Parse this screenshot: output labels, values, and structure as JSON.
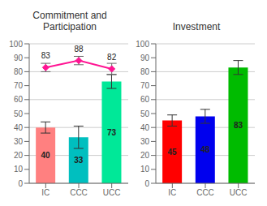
{
  "chart_data": [
    {
      "type": "bar",
      "title": "Commitment and\nParticipation",
      "categories": [
        "IC",
        "CCC",
        "UCC"
      ],
      "series": [
        {
          "type": "bar",
          "colors": [
            "#FF8080",
            "#00BFBF",
            "#00E898"
          ],
          "values": [
            40,
            33,
            73
          ],
          "errors": [
            4,
            8,
            5
          ],
          "data_labels": true
        },
        {
          "type": "line",
          "color": "#FF1493",
          "marker": "diamond",
          "values": [
            83,
            88,
            82
          ],
          "errors": [
            3,
            3,
            4
          ],
          "data_labels": true
        }
      ],
      "ylim": [
        0,
        100
      ],
      "yticks": [
        0,
        10,
        20,
        30,
        40,
        50,
        60,
        70,
        80,
        90,
        100
      ],
      "grid": true
    },
    {
      "type": "bar",
      "title": "Investment",
      "categories": [
        "IC",
        "CCC",
        "UCC"
      ],
      "series": [
        {
          "type": "bar",
          "colors": [
            "#FF0000",
            "#0000EE",
            "#00BB00"
          ],
          "values": [
            45,
            48,
            83
          ],
          "errors": [
            4,
            5,
            5
          ],
          "data_labels": true
        }
      ],
      "ylim": [
        0,
        100
      ],
      "yticks": [
        0,
        10,
        20,
        30,
        40,
        50,
        60,
        70,
        80,
        90,
        100
      ],
      "grid": true
    }
  ]
}
